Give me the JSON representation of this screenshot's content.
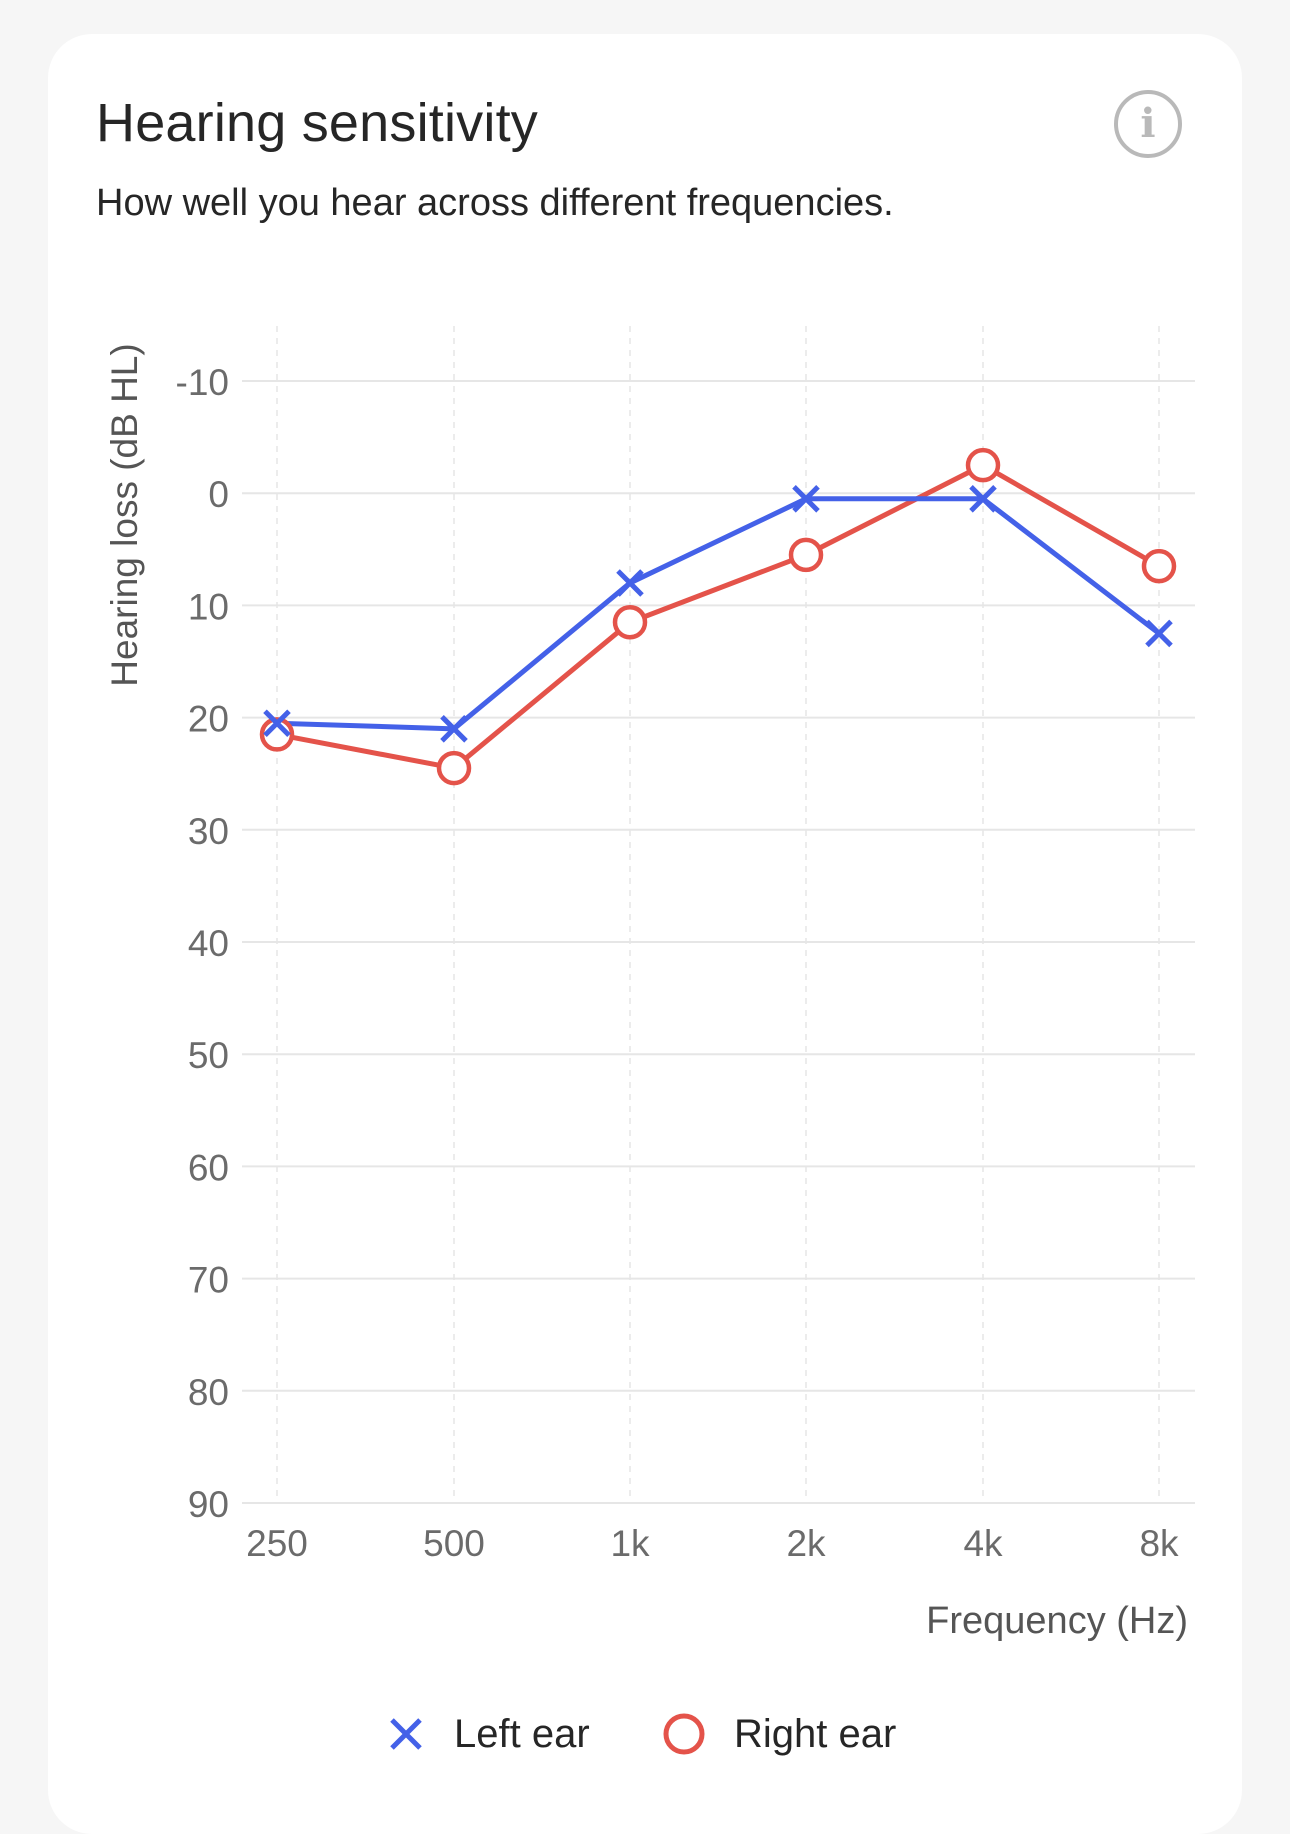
{
  "card": {
    "title": "Hearing sensitivity",
    "subtitle": "How well you hear across different frequencies.",
    "info_icon": "info-circle-icon"
  },
  "colors": {
    "left_ear": "#4461e8",
    "right_ear": "#e4534a",
    "grid": "#e6e6e6",
    "tick_text": "#6b6b6b"
  },
  "chart_data": {
    "type": "line",
    "xlabel": "Frequency (Hz)",
    "ylabel": "Hearing loss (dB HL)",
    "categories": [
      "250",
      "500",
      "1k",
      "2k",
      "4k",
      "8k"
    ],
    "y_ticks": [
      "-10",
      "0",
      "10",
      "20",
      "30",
      "40",
      "50",
      "60",
      "70",
      "80",
      "90"
    ],
    "ylim": [
      -10,
      90
    ],
    "y_inverted": true,
    "grid": true,
    "legend_position": "bottom-center",
    "series": [
      {
        "name": "Left ear",
        "marker": "x",
        "color": "#4461e8",
        "values": [
          20.5,
          21,
          8,
          0.5,
          0.5,
          12.5
        ]
      },
      {
        "name": "Right ear",
        "marker": "circle",
        "color": "#e4534a",
        "values": [
          21.5,
          24.5,
          11.5,
          5.5,
          -2.5,
          6.5
        ]
      }
    ]
  }
}
